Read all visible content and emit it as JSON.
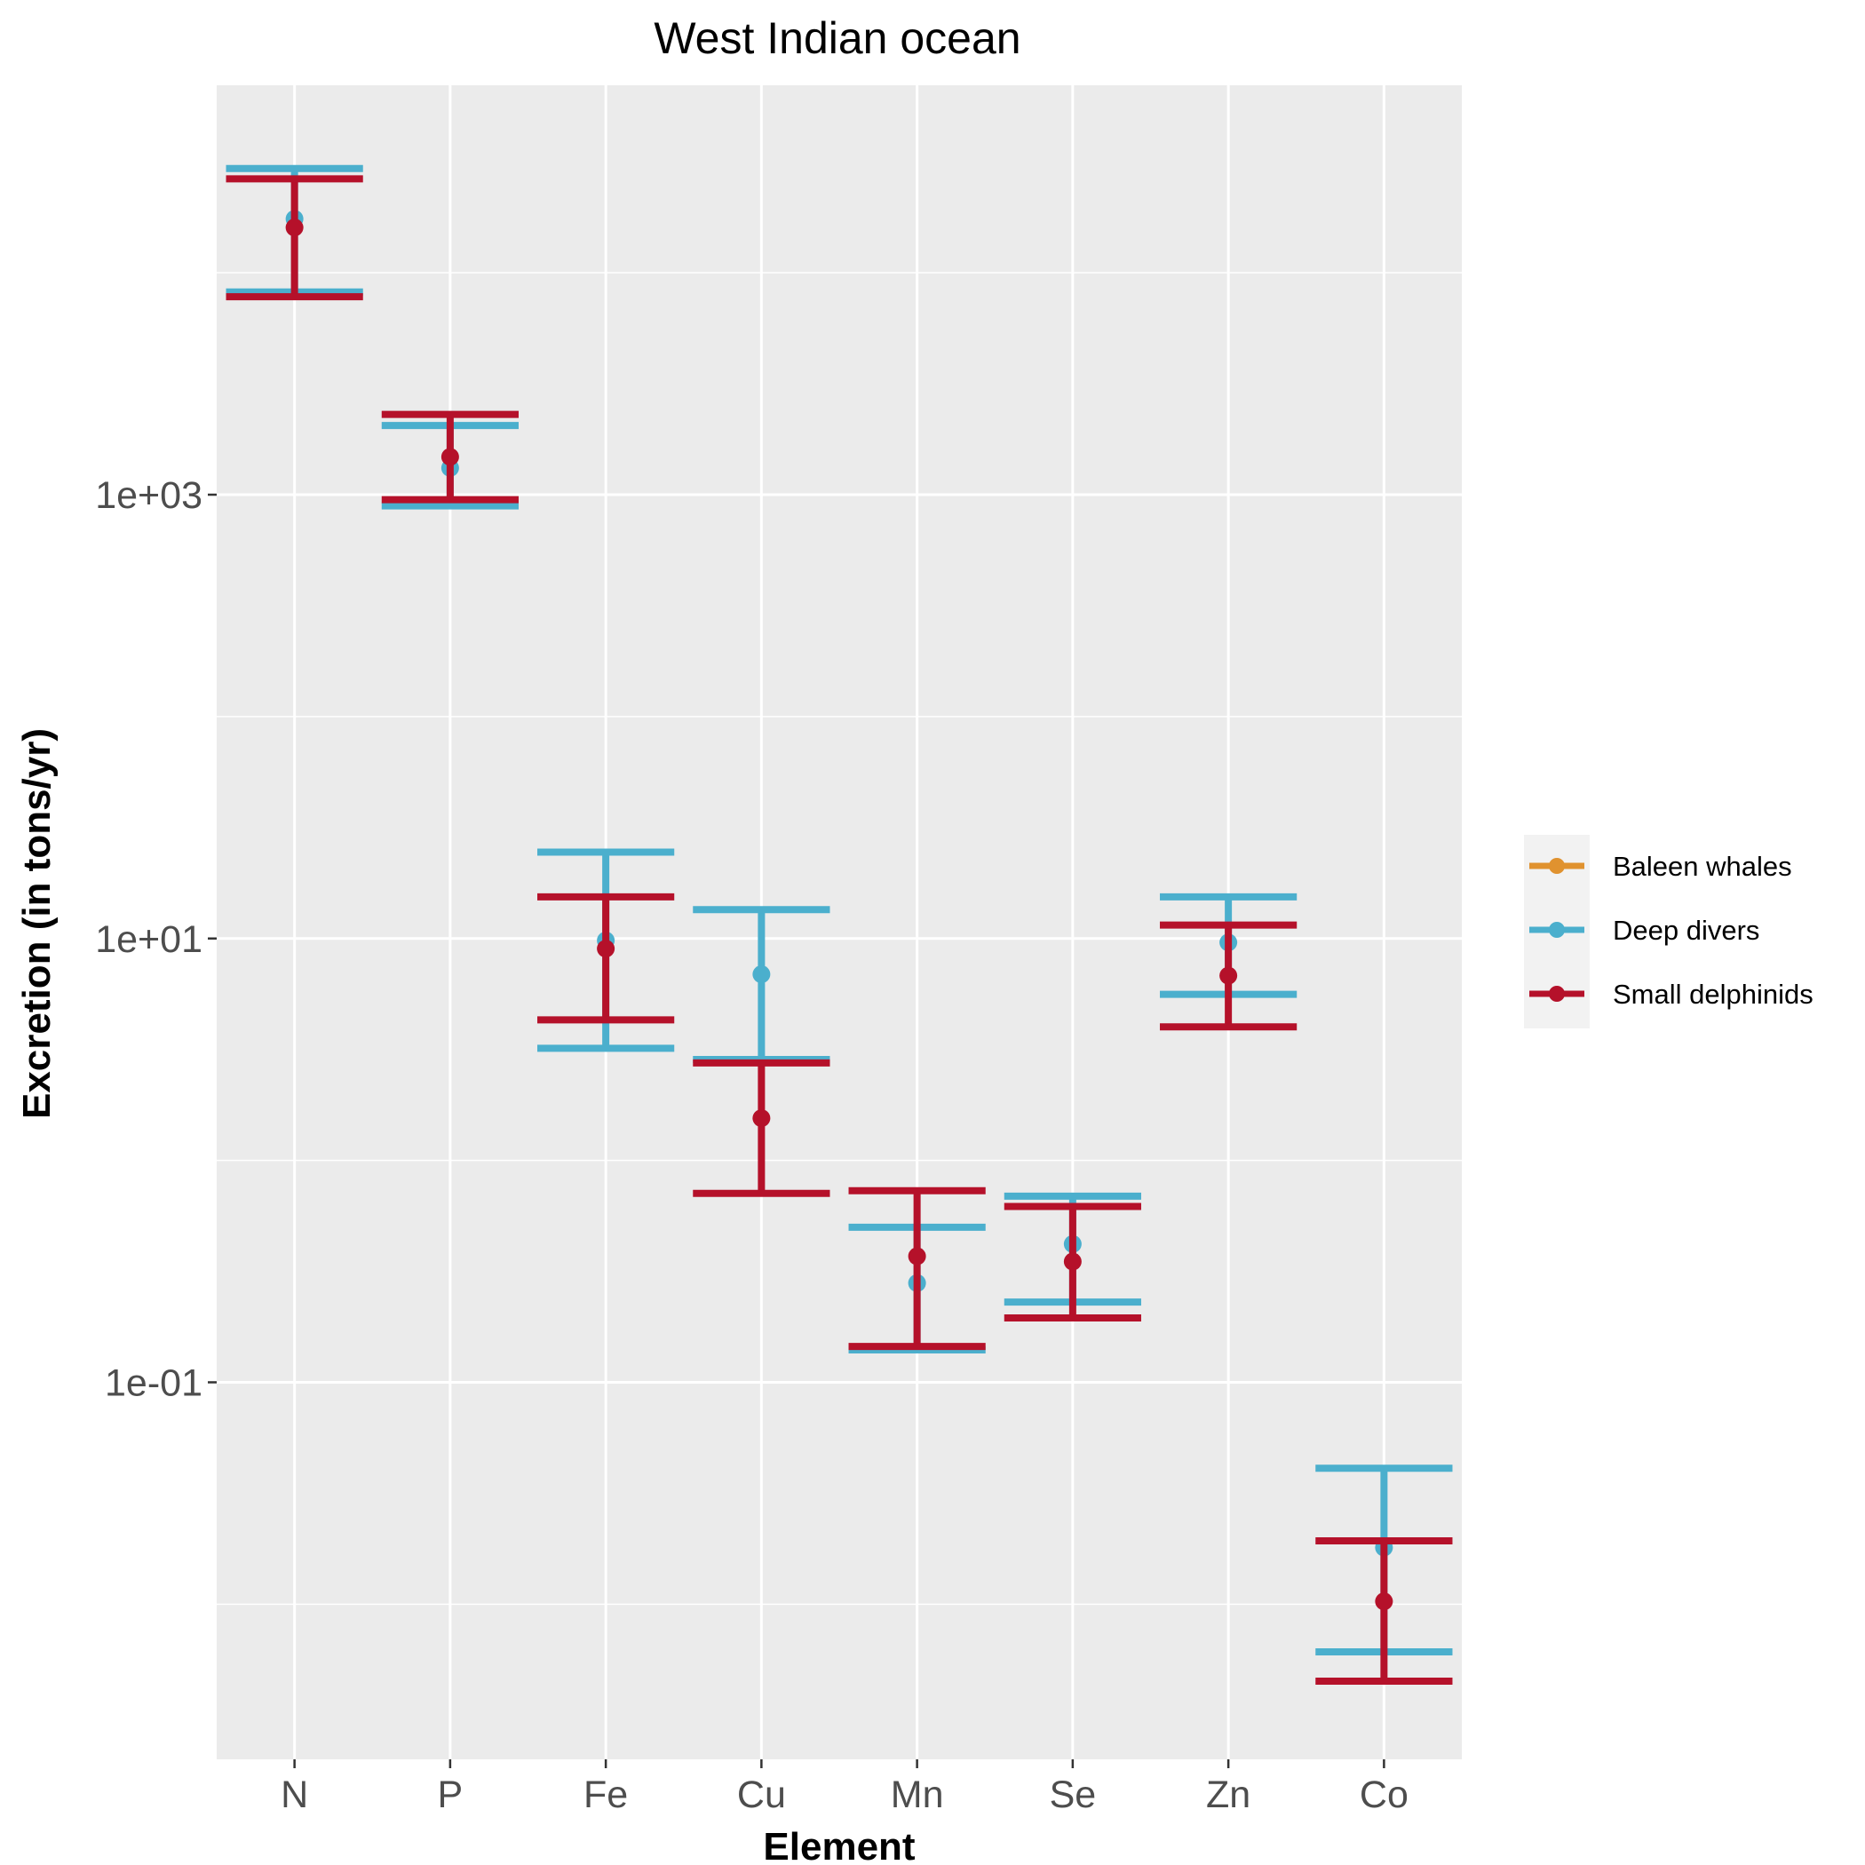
{
  "chart_data": {
    "type": "errorbar",
    "title": "West Indian ocean",
    "xlabel": "Element",
    "ylabel": "Excretion (in tons/yr)",
    "y_scale": "log10",
    "ylim": [
      0.002,
      70000
    ],
    "y_ticks": [
      {
        "value": 0.1,
        "label": "1e-01"
      },
      {
        "value": 10,
        "label": "1e+01"
      },
      {
        "value": 1000,
        "label": "1e+03"
      }
    ],
    "categories": [
      "N",
      "P",
      "Fe",
      "Cu",
      "Mn",
      "Se",
      "Zn",
      "Co"
    ],
    "grid": true,
    "legend_position": "right",
    "series": [
      {
        "name": "Baleen whales",
        "color": "#E0922F",
        "points": []
      },
      {
        "name": "Deep divers",
        "color": "#4BAFCD",
        "points": [
          {
            "x": "N",
            "y": 17500,
            "ymin": 8200,
            "ymax": 29500
          },
          {
            "x": "P",
            "y": 1320,
            "ymin": 890,
            "ymax": 2050
          },
          {
            "x": "Fe",
            "y": 9.8,
            "ymin": 3.2,
            "ymax": 24.5
          },
          {
            "x": "Cu",
            "y": 6.9,
            "ymin": 2.85,
            "ymax": 13.5
          },
          {
            "x": "Mn",
            "y": 0.28,
            "ymin": 0.14,
            "ymax": 0.5
          },
          {
            "x": "Se",
            "y": 0.42,
            "ymin": 0.23,
            "ymax": 0.69
          },
          {
            "x": "Zn",
            "y": 9.6,
            "ymin": 5.6,
            "ymax": 15.4
          },
          {
            "x": "Co",
            "y": 0.018,
            "ymin": 0.0061,
            "ymax": 0.041
          }
        ]
      },
      {
        "name": "Small delphinids",
        "color": "#B5112A",
        "points": [
          {
            "x": "N",
            "y": 16000,
            "ymin": 7800,
            "ymax": 26500
          },
          {
            "x": "P",
            "y": 1480,
            "ymin": 950,
            "ymax": 2300
          },
          {
            "x": "Fe",
            "y": 9.0,
            "ymin": 4.3,
            "ymax": 15.4
          },
          {
            "x": "Cu",
            "y": 1.55,
            "ymin": 0.71,
            "ymax": 2.75
          },
          {
            "x": "Mn",
            "y": 0.37,
            "ymin": 0.145,
            "ymax": 0.73
          },
          {
            "x": "Se",
            "y": 0.35,
            "ymin": 0.195,
            "ymax": 0.62
          },
          {
            "x": "Zn",
            "y": 6.8,
            "ymin": 4.0,
            "ymax": 11.5
          },
          {
            "x": "Co",
            "y": 0.0103,
            "ymin": 0.0045,
            "ymax": 0.0193
          }
        ]
      }
    ]
  }
}
